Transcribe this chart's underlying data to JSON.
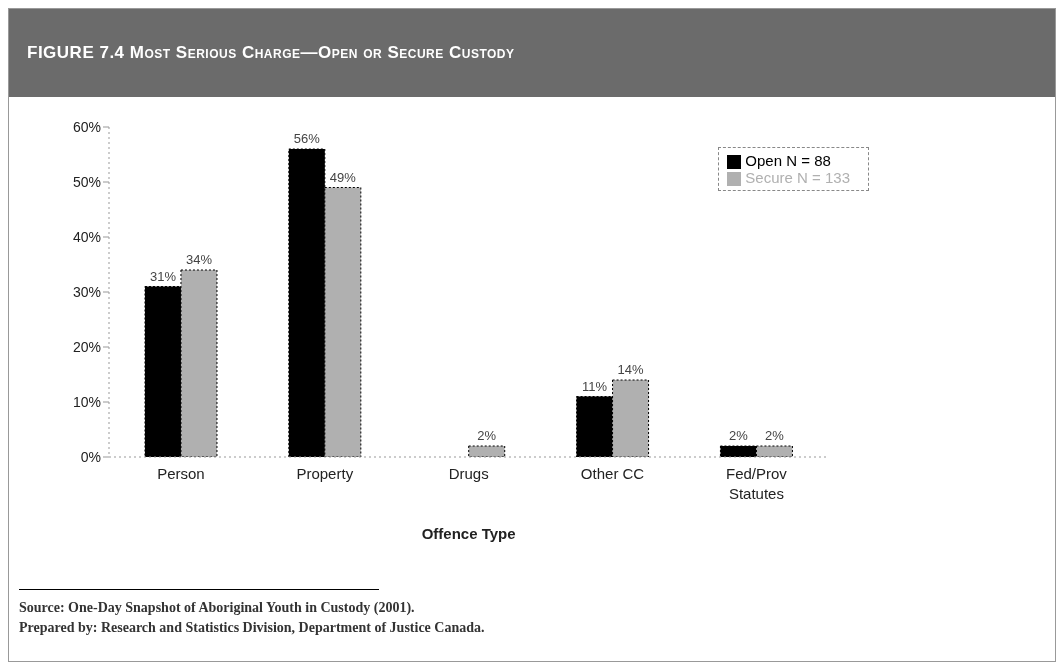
{
  "chart_data": {
    "type": "bar",
    "title": "FIGURE 7.4  Most Serious Charge—Open or Secure Custody",
    "xlabel": "Offence Type",
    "categories": [
      "Person",
      "Property",
      "Drugs",
      "Other CC",
      "Fed/Prov Statutes"
    ],
    "series": [
      {
        "name": "Open      N = 88",
        "color": "#000000",
        "values": [
          31,
          56,
          0,
          11,
          2
        ],
        "value_labels": [
          "31%",
          "56%",
          null,
          "11%",
          "2%"
        ]
      },
      {
        "name": "Secure    N = 133",
        "color": "#b0b0b0",
        "values": [
          34,
          49,
          2,
          14,
          2
        ],
        "value_labels": [
          "34%",
          "49%",
          "2%",
          "14%",
          "2%"
        ]
      }
    ],
    "ylim": [
      0,
      60
    ],
    "yticks": [
      {
        "value": 0,
        "label": "0%"
      },
      {
        "value": 10,
        "label": "10%"
      },
      {
        "value": 20,
        "label": "20%"
      },
      {
        "value": 30,
        "label": "30%"
      },
      {
        "value": 40,
        "label": "40%"
      },
      {
        "value": 50,
        "label": "50%"
      },
      {
        "value": 60,
        "label": "60%"
      }
    ],
    "grid": false,
    "legend": "top right",
    "annotations": [
      "Source: One-Day Snapshot of Aboriginal Youth in Custody (2001).",
      "Prepared by: Research and Statistics Division, Department of Justice Canada."
    ]
  }
}
